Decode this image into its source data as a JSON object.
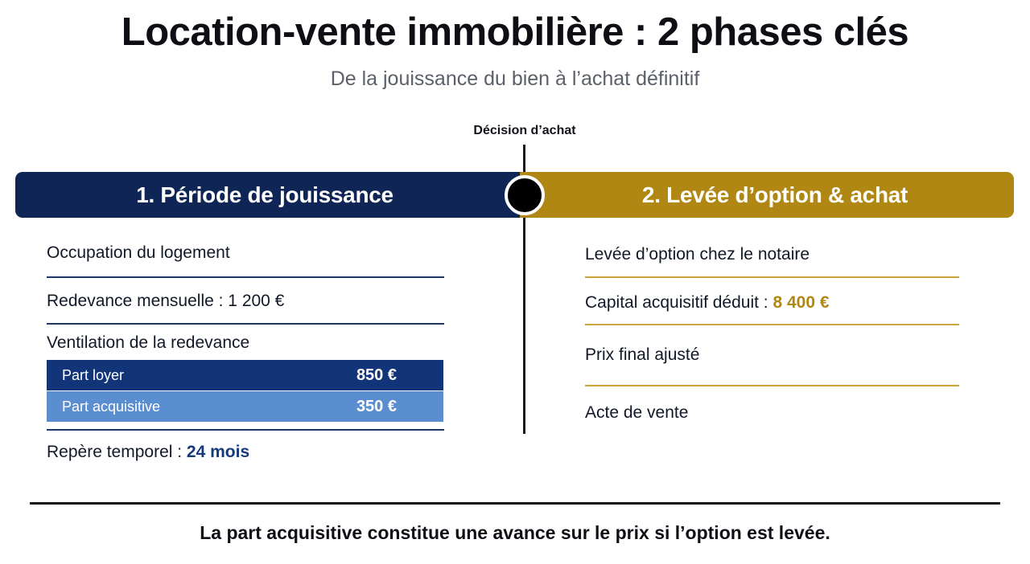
{
  "header": {
    "title": "Location-vente immobilière : 2 phases clés",
    "subtitle": "De la jouissance du bien à l’achat définitif"
  },
  "timeline": {
    "decision_label": "Décision d’achat"
  },
  "phase1": {
    "title": "1. Période de jouissance",
    "items": {
      "occupation": "Occupation du logement",
      "redevance": "Redevance mensuelle : 1 200 €",
      "ventilation_label": "Ventilation de la redevance",
      "ventilation": [
        {
          "label": "Part loyer",
          "value": "850 €"
        },
        {
          "label": "Part acquisitive",
          "value": "350 €"
        }
      ],
      "repere_label": "Repère temporel : ",
      "repere_value": "24 mois"
    }
  },
  "phase2": {
    "title": "2. Levée d’option & achat",
    "items": {
      "levee": "Levée d’option chez le notaire",
      "capital_label": "Capital acquisitif déduit : ",
      "capital_value": "8 400 €",
      "prix_final": "Prix final ajusté",
      "acte": "Acte de vente"
    }
  },
  "footer": {
    "note": "La part acquisitive constitue une avance sur le prix si l’option est levée."
  },
  "colors": {
    "navy": "#0f2555",
    "gold": "#b08712",
    "ventil_dark": "#12357a",
    "ventil_light": "#5b8ed0"
  }
}
